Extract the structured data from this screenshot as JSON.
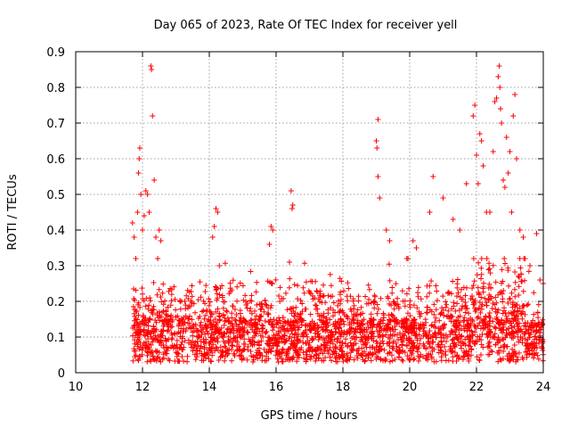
{
  "chart_data": {
    "type": "scatter",
    "title": "Day 065 of 2023, Rate Of TEC Index for receiver yell",
    "xlabel": "GPS time / hours",
    "ylabel": "ROTI / TECUs",
    "xlim": [
      10,
      24
    ],
    "ylim": [
      0,
      0.9
    ],
    "grid": true,
    "marker": "+",
    "color": "#ff0000",
    "x_ticks": [
      10,
      12,
      14,
      16,
      18,
      20,
      22,
      24
    ],
    "x_tick_labels": [
      "10",
      "12",
      "14",
      "16",
      "18",
      "20",
      "22",
      "24"
    ],
    "y_ticks": [
      0,
      0.1,
      0.2,
      0.3,
      0.4,
      0.5,
      0.6,
      0.7,
      0.8,
      0.9
    ],
    "y_tick_labels": [
      "0",
      "0.1",
      "0.2",
      "0.3",
      "0.4",
      "0.5",
      "0.6",
      "0.7",
      "0.8",
      "0.9"
    ],
    "series": [
      {
        "name": "ROTI",
        "points": [
          [
            11.7,
            0.42
          ],
          [
            11.75,
            0.38
          ],
          [
            11.8,
            0.32
          ],
          [
            11.85,
            0.45
          ],
          [
            11.88,
            0.56
          ],
          [
            11.9,
            0.6
          ],
          [
            11.92,
            0.63
          ],
          [
            11.95,
            0.5
          ],
          [
            12.0,
            0.4
          ],
          [
            12.05,
            0.44
          ],
          [
            12.1,
            0.51
          ],
          [
            12.15,
            0.5
          ],
          [
            12.2,
            0.45
          ],
          [
            12.25,
            0.86
          ],
          [
            12.27,
            0.85
          ],
          [
            12.3,
            0.72
          ],
          [
            12.35,
            0.54
          ],
          [
            12.4,
            0.38
          ],
          [
            12.5,
            0.4
          ],
          [
            12.55,
            0.37
          ],
          [
            14.1,
            0.38
          ],
          [
            14.15,
            0.41
          ],
          [
            14.2,
            0.46
          ],
          [
            14.25,
            0.45
          ],
          [
            14.3,
            0.3
          ],
          [
            15.85,
            0.41
          ],
          [
            15.9,
            0.4
          ],
          [
            15.8,
            0.36
          ],
          [
            16.45,
            0.51
          ],
          [
            16.5,
            0.47
          ],
          [
            16.48,
            0.46
          ],
          [
            16.4,
            0.31
          ],
          [
            19.05,
            0.71
          ],
          [
            19.0,
            0.65
          ],
          [
            19.02,
            0.63
          ],
          [
            19.05,
            0.55
          ],
          [
            19.1,
            0.49
          ],
          [
            19.3,
            0.4
          ],
          [
            19.4,
            0.37
          ],
          [
            20.1,
            0.37
          ],
          [
            20.2,
            0.35
          ],
          [
            20.6,
            0.45
          ],
          [
            20.7,
            0.55
          ],
          [
            21.0,
            0.49
          ],
          [
            21.3,
            0.43
          ],
          [
            21.5,
            0.4
          ],
          [
            21.7,
            0.53
          ],
          [
            21.9,
            0.72
          ],
          [
            21.95,
            0.75
          ],
          [
            22.0,
            0.61
          ],
          [
            22.05,
            0.53
          ],
          [
            22.1,
            0.67
          ],
          [
            22.15,
            0.65
          ],
          [
            22.2,
            0.58
          ],
          [
            22.3,
            0.45
          ],
          [
            22.4,
            0.45
          ],
          [
            22.5,
            0.62
          ],
          [
            22.55,
            0.76
          ],
          [
            22.6,
            0.77
          ],
          [
            22.65,
            0.83
          ],
          [
            22.68,
            0.86
          ],
          [
            22.7,
            0.8
          ],
          [
            22.72,
            0.74
          ],
          [
            22.75,
            0.7
          ],
          [
            22.8,
            0.54
          ],
          [
            22.85,
            0.52
          ],
          [
            22.9,
            0.66
          ],
          [
            22.95,
            0.56
          ],
          [
            23.0,
            0.62
          ],
          [
            23.05,
            0.45
          ],
          [
            23.1,
            0.72
          ],
          [
            23.15,
            0.78
          ],
          [
            23.2,
            0.6
          ],
          [
            23.3,
            0.4
          ],
          [
            23.4,
            0.38
          ],
          [
            23.6,
            0.3
          ],
          [
            23.8,
            0.39
          ],
          [
            23.9,
            0.26
          ],
          [
            24.0,
            0.25
          ]
        ]
      }
    ]
  }
}
